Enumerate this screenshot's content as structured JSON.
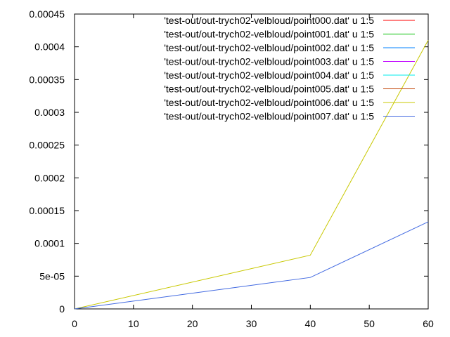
{
  "chart_data": {
    "type": "line",
    "xlim": [
      0,
      60
    ],
    "ylim": [
      0,
      0.00045
    ],
    "x_ticks": [
      {
        "value": 0,
        "label": "0"
      },
      {
        "value": 10,
        "label": "10"
      },
      {
        "value": 20,
        "label": "20"
      },
      {
        "value": 30,
        "label": "30"
      },
      {
        "value": 40,
        "label": "40"
      },
      {
        "value": 50,
        "label": "50"
      },
      {
        "value": 60,
        "label": "60"
      }
    ],
    "y_ticks": [
      {
        "value": 0,
        "label": "0"
      },
      {
        "value": 5e-05,
        "label": "5e-05"
      },
      {
        "value": 0.0001,
        "label": "0.0001"
      },
      {
        "value": 0.00015,
        "label": "0.00015"
      },
      {
        "value": 0.0002,
        "label": "0.0002"
      },
      {
        "value": 0.00025,
        "label": "0.00025"
      },
      {
        "value": 0.0003,
        "label": "0.0003"
      },
      {
        "value": 0.00035,
        "label": "0.00035"
      },
      {
        "value": 0.0004,
        "label": "0.0004"
      },
      {
        "value": 0.00045,
        "label": "0.00045"
      }
    ],
    "grid": false,
    "legend_position": "top-right",
    "series": [
      {
        "name": "'test-out/out-trych02-velbloud/point000.dat' u 1:5",
        "color": "#ff0000",
        "x": [],
        "y": []
      },
      {
        "name": "'test-out/out-trych02-velbloud/point001.dat' u 1:5",
        "color": "#00c000",
        "x": [],
        "y": []
      },
      {
        "name": "'test-out/out-trych02-velbloud/point002.dat' u 1:5",
        "color": "#0080ff",
        "x": [],
        "y": []
      },
      {
        "name": "'test-out/out-trych02-velbloud/point003.dat' u 1:5",
        "color": "#c000ff",
        "x": [],
        "y": []
      },
      {
        "name": "'test-out/out-trych02-velbloud/point004.dat' u 1:5",
        "color": "#00eeee",
        "x": [],
        "y": []
      },
      {
        "name": "'test-out/out-trych02-velbloud/point005.dat' u 1:5",
        "color": "#c04000",
        "x": [],
        "y": []
      },
      {
        "name": "'test-out/out-trych02-velbloud/point006.dat' u 1:5",
        "color": "#c8c800",
        "x": [
          0,
          40,
          60
        ],
        "y": [
          0,
          8.2e-05,
          0.00041
        ]
      },
      {
        "name": "'test-out/out-trych02-velbloud/point007.dat' u 1:5",
        "color": "#4169e1",
        "x": [
          0,
          40,
          60
        ],
        "y": [
          0,
          4.8e-05,
          0.000133
        ]
      }
    ]
  }
}
